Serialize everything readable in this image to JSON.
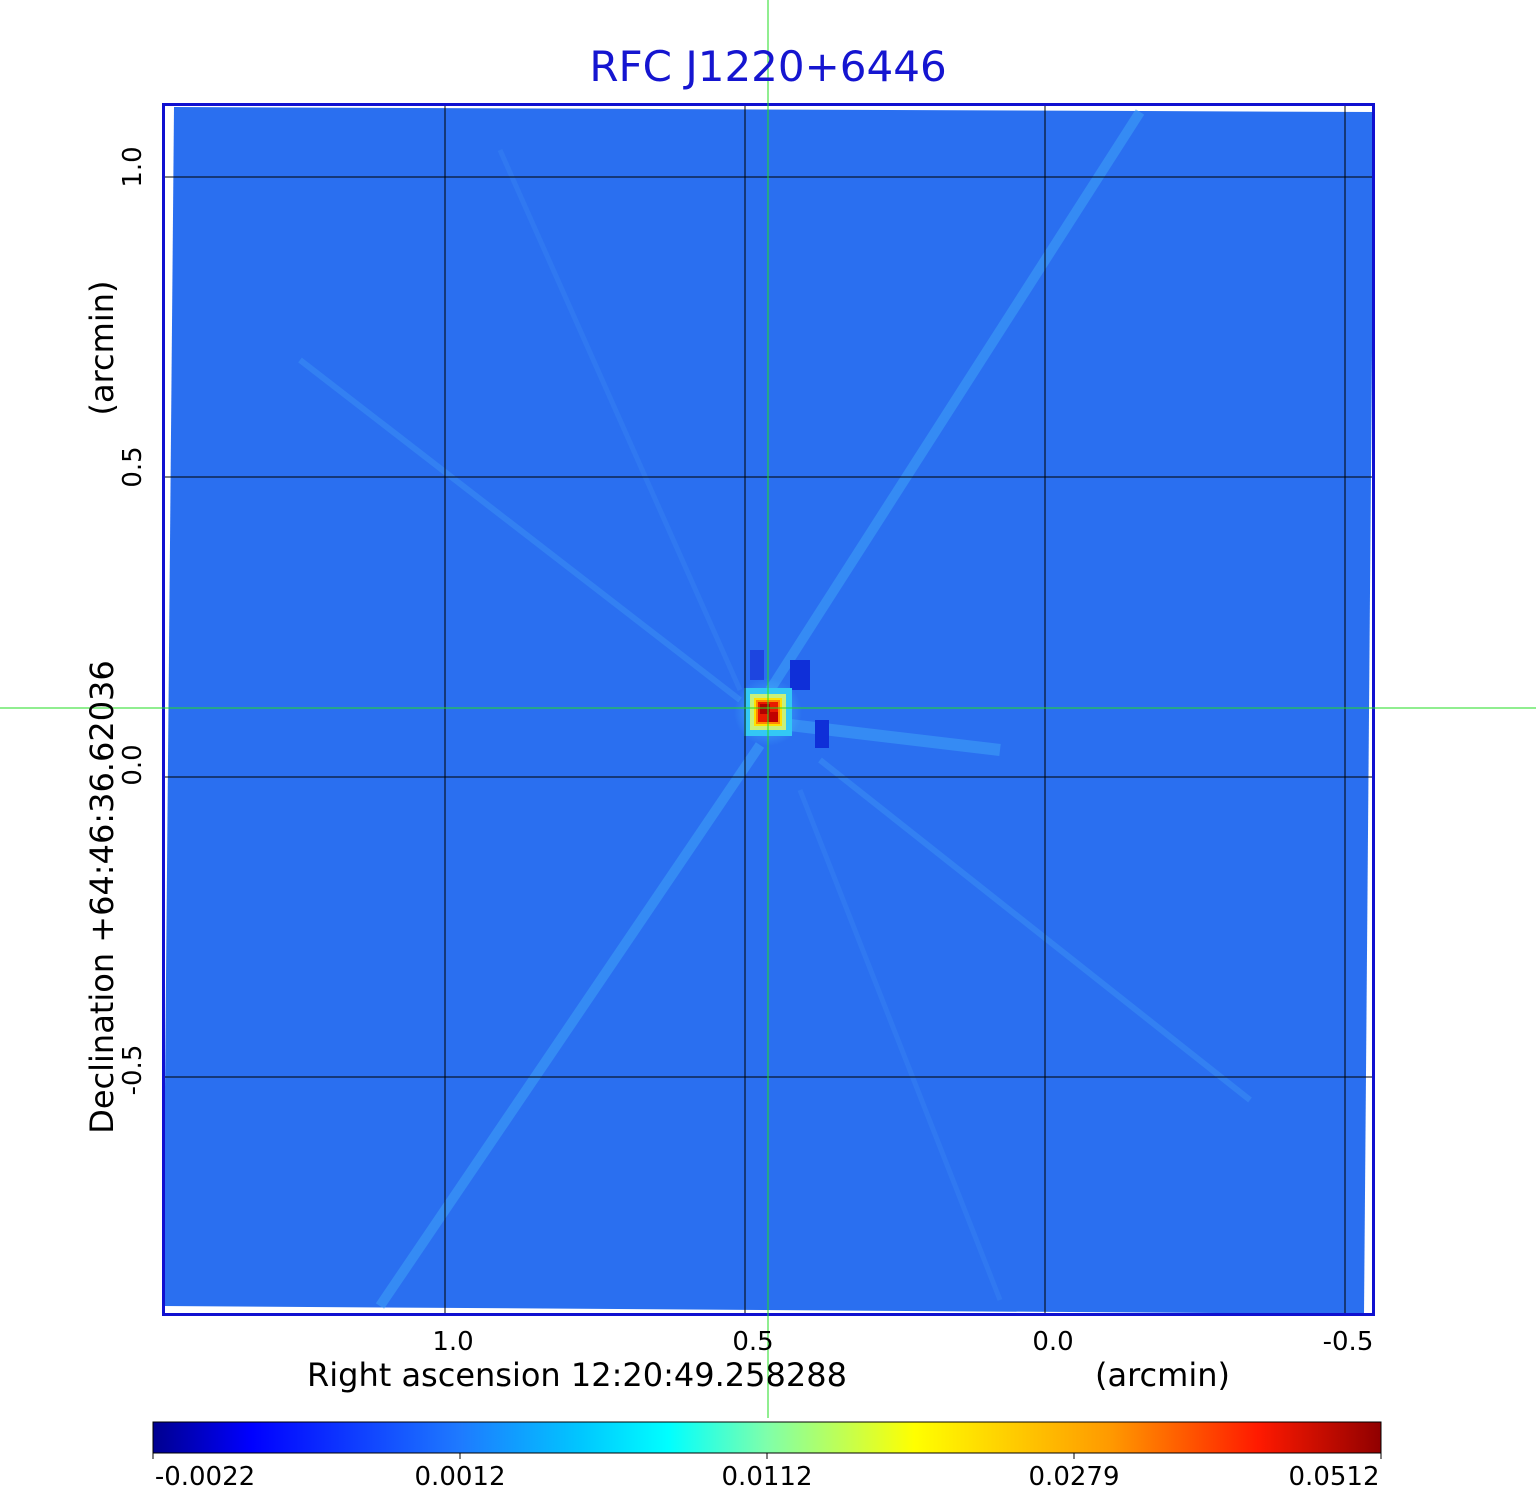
{
  "title": "RFC J1220+6446",
  "x_axis": {
    "label": "Right ascension  12:20:49.258288",
    "unit": "(arcmin)",
    "ticks": [
      "1.0",
      "0.5",
      "0.0",
      "-0.5"
    ]
  },
  "y_axis": {
    "label": "Declination  +64:46:36.62036",
    "unit": "(arcmin)",
    "ticks": [
      "1.0",
      "0.5",
      "0.0",
      "-0.5"
    ]
  },
  "colorbar": {
    "ticks": [
      "-0.0022",
      "0.0012",
      "0.0112",
      "0.0279",
      "0.0512"
    ],
    "colors": [
      "#00008f",
      "#0000ff",
      "#00ffff",
      "#ffff00",
      "#ff0000",
      "#800000"
    ]
  },
  "colors": {
    "title": "#1515d0",
    "frame": "#1010d0",
    "crosshair": "#22dd22",
    "background_field": "#2a6ff0"
  }
}
